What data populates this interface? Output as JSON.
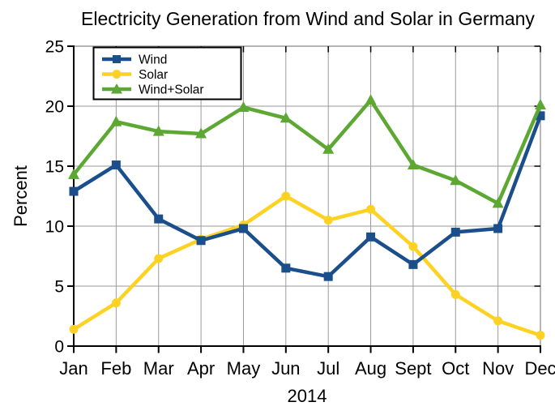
{
  "title": "Electricity Generation from Wind and Solar in Germany",
  "chart_data": {
    "type": "line",
    "title": "Electricity Generation from Wind and Solar in Germany",
    "xlabel": "2014",
    "ylabel": "Percent",
    "categories": [
      "Jan",
      "Feb",
      "Mar",
      "Apr",
      "May",
      "Jun",
      "Jul",
      "Aug",
      "Sept",
      "Oct",
      "Nov",
      "Dec"
    ],
    "series": [
      {
        "name": "Wind",
        "color": "#1A4F8C",
        "marker": "square",
        "values": [
          12.9,
          15.1,
          10.6,
          8.8,
          9.8,
          6.5,
          5.8,
          9.1,
          6.8,
          9.5,
          9.8,
          19.2
        ]
      },
      {
        "name": "Solar",
        "color": "#FDD222",
        "marker": "circle",
        "values": [
          1.4,
          3.6,
          7.3,
          8.9,
          10.1,
          12.5,
          10.5,
          11.4,
          8.3,
          4.3,
          2.1,
          0.9
        ]
      },
      {
        "name": "Wind+Solar",
        "color": "#5CA832",
        "marker": "triangle",
        "values": [
          14.3,
          18.7,
          17.9,
          17.7,
          19.9,
          19.0,
          16.4,
          20.5,
          15.1,
          13.8,
          11.9,
          20.1
        ]
      }
    ],
    "draw_order": [
      1,
      0,
      2
    ],
    "ylim": [
      0,
      25
    ],
    "yticks": [
      0,
      5,
      10,
      15,
      20,
      25
    ],
    "grid": true,
    "legend_position": "top-left",
    "colors": {
      "grid": "#9a9a9a",
      "frame_minor": "#888888",
      "axis": "#000000",
      "text": "#000000",
      "background": "#ffffff"
    }
  }
}
